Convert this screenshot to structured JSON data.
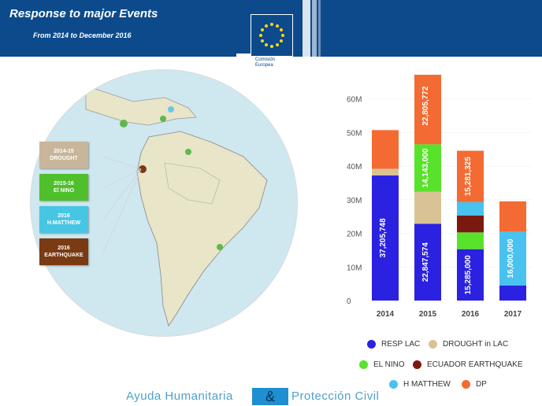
{
  "header": {
    "title": "Response to major Events",
    "subtitle": "From 2014 to December 2016"
  },
  "logo": {
    "line1": "Comisión",
    "line2": "Europea"
  },
  "map_legend": [
    {
      "year": "2014-15",
      "event": "DROUGHT",
      "color": "#c8b59a"
    },
    {
      "year": "2015-16",
      "event": "El NINO",
      "color": "#4fc02c"
    },
    {
      "year": "2016",
      "event": "H.MATTHEW",
      "color": "#47c6e3"
    },
    {
      "year": "2016",
      "event": "EARTHQUAKE",
      "color": "#7a3a12"
    }
  ],
  "footer": {
    "left": "Ayuda Humanitaria",
    "amp": "&",
    "right": "Protección Civil"
  },
  "chart_data": {
    "type": "bar",
    "stacked": true,
    "categories": [
      "2014",
      "2015",
      "2016",
      "2017"
    ],
    "yticks": [
      "0",
      "10M",
      "20M",
      "30M",
      "40M",
      "50M",
      "60M"
    ],
    "ylim": [
      0,
      66000000
    ],
    "series": [
      {
        "name": "RESP LAC",
        "color": "#2a22e0",
        "values": [
          37205748,
          22847574,
          15285000,
          4500000
        ]
      },
      {
        "name": "DROUGHT in LAC",
        "color": "#d9c396",
        "values": [
          2000000,
          9500000,
          0,
          0
        ]
      },
      {
        "name": "EL NINO",
        "color": "#59e22b",
        "values": [
          0,
          14143000,
          5000000,
          0
        ]
      },
      {
        "name": "ECUADOR EARTHQUAKE",
        "color": "#7a1a0e",
        "values": [
          0,
          0,
          5000000,
          0
        ]
      },
      {
        "name": "H MATTHEW",
        "color": "#49c2ef",
        "values": [
          0,
          0,
          4000000,
          16000000
        ]
      },
      {
        "name": "DP",
        "color": "#f46a33",
        "values": [
          11500000,
          22805772,
          15281325,
          9000000
        ]
      }
    ],
    "labels": [
      {
        "category": "2014",
        "series": "RESP LAC",
        "text": "37,205,748"
      },
      {
        "category": "2015",
        "series": "RESP LAC",
        "text": "22,847,574"
      },
      {
        "category": "2015",
        "series": "EL NINO",
        "text": "14,143,000"
      },
      {
        "category": "2015",
        "series": "DP",
        "text": "22,805,772"
      },
      {
        "category": "2016",
        "series": "RESP LAC",
        "text": "15,285,000"
      },
      {
        "category": "2016",
        "series": "DP",
        "text": "15,281,325"
      },
      {
        "category": "2017",
        "series": "H MATTHEW",
        "text": "16,000,000"
      }
    ],
    "legend": [
      {
        "name": "RESP LAC",
        "color": "#2a22e0"
      },
      {
        "name": "DROUGHT in LAC",
        "color": "#d9c396"
      },
      {
        "name": "EL NINO",
        "color": "#59e22b"
      },
      {
        "name": "ECUADOR EARTHQUAKE",
        "color": "#7a1a0e"
      },
      {
        "name": "H MATTHEW",
        "color": "#49c2ef"
      },
      {
        "name": "DP",
        "color": "#f46a33"
      }
    ]
  }
}
